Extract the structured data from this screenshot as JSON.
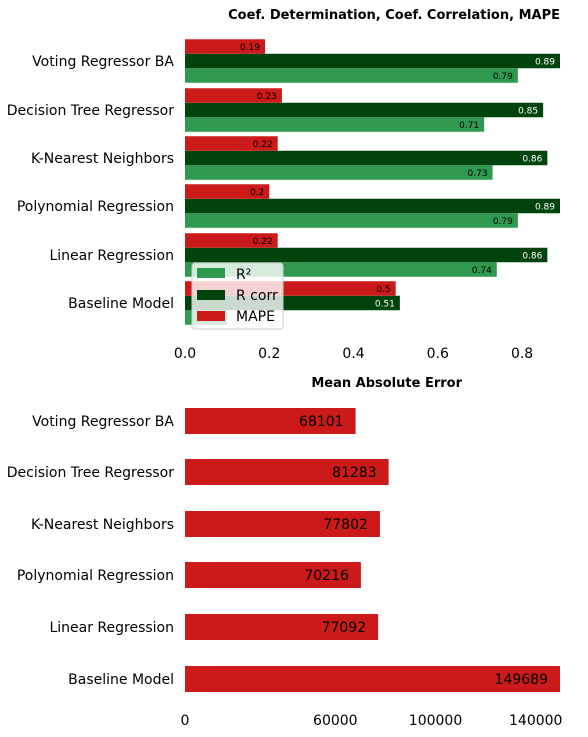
{
  "colors": {
    "r2": "#2e9a50",
    "rcorr": "#00440d",
    "mape": "#cc1a1a",
    "mae": "#cc1a1a"
  },
  "chart_data": [
    {
      "type": "bar",
      "orientation": "horizontal",
      "title": "Coef. Determination, Coef. Correlation, MAPE",
      "categories": [
        "Voting Regressor BA",
        "Decision Tree Regressor",
        "K-Nearest Neighbors",
        "Polynomial Regression",
        "Linear Regression",
        "Baseline Model"
      ],
      "series": [
        {
          "name": "R²",
          "values": [
            0.79,
            0.71,
            0.73,
            0.79,
            0.74,
            0.1
          ]
        },
        {
          "name": "R corr",
          "values": [
            0.89,
            0.85,
            0.86,
            0.89,
            0.86,
            0.51
          ]
        },
        {
          "name": "MAPE",
          "values": [
            0.19,
            0.23,
            0.22,
            0.2,
            0.22,
            0.5
          ]
        }
      ],
      "data_labels": [
        [
          "0.79",
          "0.71",
          "0.73",
          "0.79",
          "0.74",
          ""
        ],
        [
          "0.89",
          "0.85",
          "0.86",
          "0.89",
          "0.86",
          "0.51"
        ],
        [
          "0.19",
          "0.23",
          "0.22",
          "0.2",
          "0.22",
          "0.5"
        ]
      ],
      "xticks": [
        "0.0",
        "0.2",
        "0.4",
        "0.6",
        "0.8"
      ],
      "xlim": [
        0,
        0.89
      ],
      "grid": false,
      "legend": "lower-left"
    },
    {
      "type": "bar",
      "orientation": "horizontal",
      "title": "Mean Absolute Error",
      "categories": [
        "Voting Regressor BA",
        "Decision Tree Regressor",
        "K-Nearest Neighbors",
        "Polynomial Regression",
        "Linear Regression",
        "Baseline Model"
      ],
      "series": [
        {
          "name": "",
          "values": [
            68101,
            81283,
            77802,
            70216,
            77092,
            149689
          ]
        }
      ],
      "data_labels": [
        [
          "68101",
          "81283",
          "77802",
          "70216",
          "77092",
          "149689"
        ]
      ],
      "xticks": [
        "0",
        "60000",
        "100000",
        "140000"
      ],
      "xtick_values": [
        0,
        60000,
        100000,
        140000
      ],
      "xlim": [
        0,
        149689
      ],
      "grid": false
    }
  ]
}
